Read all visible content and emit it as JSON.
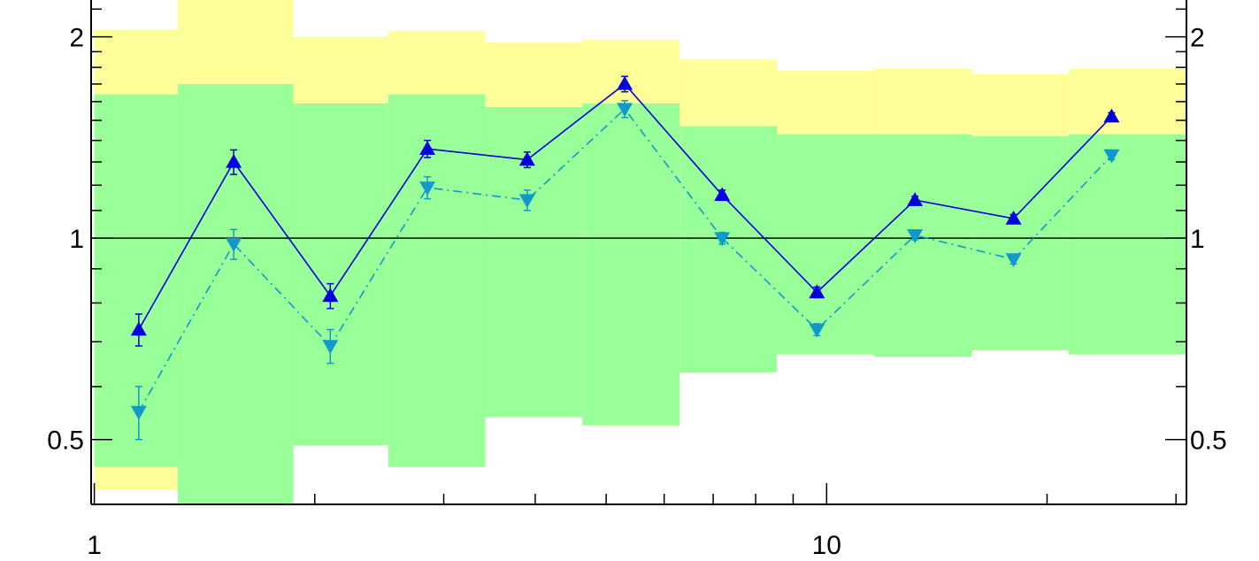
{
  "chart_data": {
    "type": "line",
    "x_scale": "log",
    "y_scale": "log",
    "xlim": [
      0.99,
      31
    ],
    "ylim": [
      0.4,
      2.27
    ],
    "grid": false,
    "x_ticks": [
      {
        "value": 1,
        "label": "1"
      },
      {
        "value": 10,
        "label": "10"
      }
    ],
    "y_ticks": [
      {
        "value": 0.5,
        "label": "0.5"
      },
      {
        "value": 1,
        "label": "1"
      },
      {
        "value": 2,
        "label": "2"
      }
    ],
    "reference_line": 1,
    "bands": [
      {
        "x_lo": 1.0,
        "x_hi": 1.3,
        "yellow": [
          0.42,
          2.05
        ],
        "green": [
          0.455,
          1.64
        ]
      },
      {
        "x_lo": 1.3,
        "x_hi": 1.87,
        "yellow": [
          0.4,
          2.3
        ],
        "green": [
          0.4,
          1.7
        ]
      },
      {
        "x_lo": 1.87,
        "x_hi": 2.52,
        "yellow": [
          0.49,
          2.0
        ],
        "green": [
          0.49,
          1.59
        ]
      },
      {
        "x_lo": 2.52,
        "x_hi": 3.42,
        "yellow": [
          0.455,
          2.04
        ],
        "green": [
          0.455,
          1.64
        ]
      },
      {
        "x_lo": 3.42,
        "x_hi": 4.64,
        "yellow": [
          0.54,
          1.96
        ],
        "green": [
          0.54,
          1.57
        ]
      },
      {
        "x_lo": 4.64,
        "x_hi": 6.3,
        "yellow": [
          0.525,
          1.98
        ],
        "green": [
          0.525,
          1.59
        ]
      },
      {
        "x_lo": 6.3,
        "x_hi": 8.55,
        "yellow": [
          0.63,
          1.85
        ],
        "green": [
          0.63,
          1.47
        ]
      },
      {
        "x_lo": 8.55,
        "x_hi": 11.6,
        "yellow": [
          0.67,
          1.78
        ],
        "green": [
          0.67,
          1.43
        ]
      },
      {
        "x_lo": 11.6,
        "x_hi": 15.8,
        "yellow": [
          0.665,
          1.79
        ],
        "green": [
          0.665,
          1.43
        ]
      },
      {
        "x_lo": 15.8,
        "x_hi": 21.4,
        "yellow": [
          0.68,
          1.76
        ],
        "green": [
          0.68,
          1.42
        ]
      },
      {
        "x_lo": 21.4,
        "x_hi": 31.0,
        "yellow": [
          0.67,
          1.79
        ],
        "green": [
          0.67,
          1.43
        ]
      }
    ],
    "band_colors": {
      "yellow": "#ffff99",
      "green": "#99ff99"
    },
    "series": [
      {
        "color": "#0000dd",
        "line_style": "solid",
        "marker": "triangle-up",
        "points": [
          {
            "x": 1.15,
            "y": 0.73,
            "err": 0.04
          },
          {
            "x": 1.55,
            "y": 1.3,
            "err": 0.055
          },
          {
            "x": 2.1,
            "y": 0.82,
            "err": 0.035
          },
          {
            "x": 2.85,
            "y": 1.36,
            "err": 0.04
          },
          {
            "x": 3.9,
            "y": 1.31,
            "err": 0.035
          },
          {
            "x": 5.3,
            "y": 1.7,
            "err": 0.045
          },
          {
            "x": 7.2,
            "y": 1.16,
            "err": 0.02
          },
          {
            "x": 9.7,
            "y": 0.83,
            "err": 0.015
          },
          {
            "x": 13.2,
            "y": 1.14,
            "err": 0.015
          },
          {
            "x": 18.0,
            "y": 1.07,
            "err": 0.015
          },
          {
            "x": 24.5,
            "y": 1.52,
            "err": 0.02
          }
        ]
      },
      {
        "color": "#1199cc",
        "line_style": "dashdot",
        "marker": "triangle-down",
        "points": [
          {
            "x": 1.15,
            "y": 0.55,
            "err": 0.05
          },
          {
            "x": 1.55,
            "y": 0.98,
            "err": 0.05
          },
          {
            "x": 2.1,
            "y": 0.69,
            "err": 0.04
          },
          {
            "x": 2.85,
            "y": 1.19,
            "err": 0.045
          },
          {
            "x": 3.9,
            "y": 1.14,
            "err": 0.04
          },
          {
            "x": 5.3,
            "y": 1.56,
            "err": 0.045
          },
          {
            "x": 7.2,
            "y": 1.0,
            "err": 0.02
          },
          {
            "x": 9.7,
            "y": 0.73,
            "err": 0.015
          },
          {
            "x": 13.2,
            "y": 1.01,
            "err": 0.015
          },
          {
            "x": 18.0,
            "y": 0.93,
            "err": 0.015
          },
          {
            "x": 24.5,
            "y": 1.33,
            "err": 0.02
          }
        ]
      }
    ]
  }
}
